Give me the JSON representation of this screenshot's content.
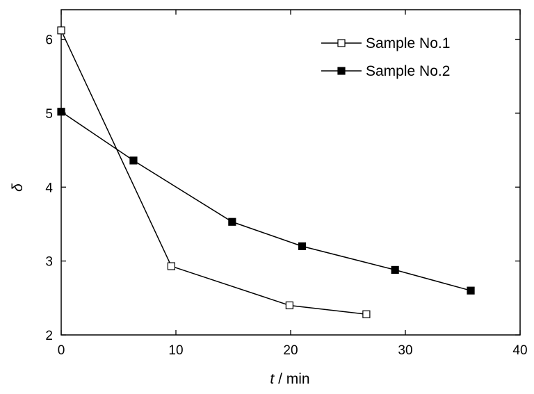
{
  "chart_data": {
    "type": "line",
    "xlabel_var": "t",
    "xlabel_unit": " / min",
    "ylabel": "δ",
    "xlim": [
      0,
      40
    ],
    "ylim": [
      2,
      6.4
    ],
    "x_ticks": [
      0,
      10,
      20,
      30,
      40
    ],
    "y_ticks": [
      2,
      3,
      4,
      5,
      6
    ],
    "grid": false,
    "legend_position": "top-right",
    "series": [
      {
        "name": "Sample No.1",
        "marker": "open-square",
        "color": "#000000",
        "x": [
          0,
          9.6,
          19.9,
          26.6
        ],
        "y": [
          6.12,
          2.93,
          2.4,
          2.28
        ]
      },
      {
        "name": "Sample No.2",
        "marker": "filled-square",
        "color": "#000000",
        "x": [
          0,
          6.3,
          14.9,
          21.0,
          29.1,
          35.7
        ],
        "y": [
          5.02,
          4.36,
          3.53,
          3.2,
          2.88,
          2.6
        ]
      }
    ]
  }
}
